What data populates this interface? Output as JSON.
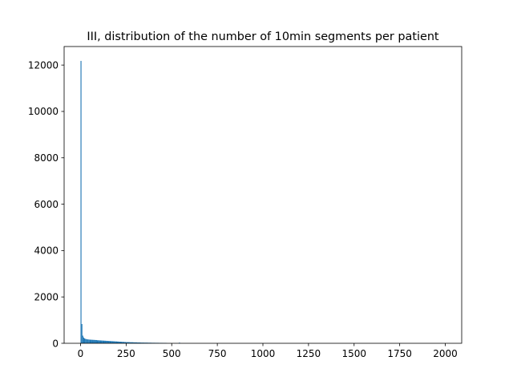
{
  "chart_data": {
    "type": "bar",
    "title": "III, distribution of the number of 10min segments per patient",
    "xlabel": "",
    "ylabel": "",
    "xlim": [
      -90,
      2090
    ],
    "ylim": [
      0,
      12800
    ],
    "x_ticks": [
      0,
      250,
      500,
      750,
      1000,
      1250,
      1500,
      1750,
      2000
    ],
    "y_ticks": [
      0,
      2000,
      4000,
      6000,
      8000,
      10000,
      12000
    ],
    "bin_width": 5,
    "color": "#1f77b4",
    "grid": false,
    "legend": "none",
    "series": [
      {
        "bin_starts": [
          0,
          5,
          10,
          15,
          20,
          25,
          30,
          35,
          40,
          45,
          50,
          60,
          70,
          80,
          90,
          100,
          110,
          120,
          130,
          140,
          150,
          160,
          170,
          180,
          190,
          200,
          210,
          220,
          230,
          240,
          250,
          270,
          290,
          310,
          330,
          350,
          370,
          390,
          410,
          430,
          450,
          470,
          540
        ],
        "values": [
          12180,
          830,
          330,
          250,
          210,
          190,
          180,
          170,
          165,
          160,
          155,
          150,
          145,
          140,
          130,
          125,
          120,
          115,
          110,
          105,
          100,
          95,
          90,
          85,
          80,
          75,
          70,
          65,
          60,
          55,
          50,
          45,
          40,
          35,
          30,
          28,
          25,
          22,
          20,
          18,
          15,
          10,
          30
        ]
      }
    ]
  }
}
